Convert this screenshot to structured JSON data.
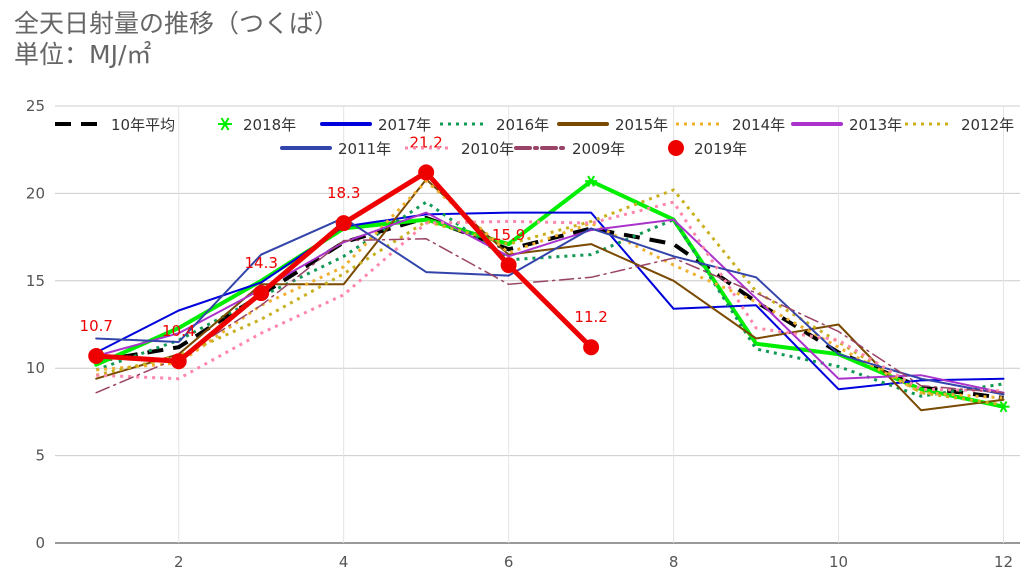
{
  "chart_data": {
    "type": "line",
    "title": "全天日射量の推移（つくば）",
    "subtitle": "単位：MJ/㎡",
    "x": [
      1,
      2,
      3,
      4,
      5,
      6,
      7,
      8,
      9,
      10,
      11,
      12
    ],
    "xticks": [
      "2",
      "4",
      "6",
      "8",
      "10",
      "12"
    ],
    "ylim": [
      0,
      25
    ],
    "yticks": [
      "0",
      "5",
      "10",
      "15",
      "20",
      "25"
    ],
    "grid": true,
    "legend_position": "top",
    "series": [
      {
        "name": "10年平均",
        "color": "#000000",
        "style": "dash",
        "values": [
          10.4,
          11.2,
          14.2,
          17.2,
          18.6,
          16.8,
          18.0,
          17.1,
          13.8,
          10.9,
          8.9,
          8.3
        ]
      },
      {
        "name": "2018年",
        "color": "#00ee00",
        "style": "solid-star",
        "values": [
          10.2,
          12.3,
          15.0,
          18.0,
          18.5,
          17.1,
          20.7,
          18.5,
          11.4,
          10.8,
          8.8,
          7.8
        ]
      },
      {
        "name": "2017年",
        "color": "#0000dd",
        "style": "solid",
        "values": [
          10.9,
          13.3,
          14.9,
          18.1,
          18.8,
          18.9,
          18.9,
          13.4,
          13.6,
          8.8,
          9.3,
          9.4
        ]
      },
      {
        "name": "2016年",
        "color": "#119955",
        "style": "dot",
        "values": [
          9.9,
          11.6,
          14.1,
          16.4,
          19.5,
          16.2,
          16.5,
          18.5,
          11.1,
          10.1,
          8.4,
          9.1
        ]
      },
      {
        "name": "2015年",
        "color": "#7a4a00",
        "style": "solid",
        "values": [
          9.4,
          10.8,
          14.8,
          14.8,
          20.8,
          16.5,
          17.1,
          15.0,
          11.7,
          12.5,
          7.6,
          8.2
        ]
      },
      {
        "name": "2014年",
        "color": "#f0b030",
        "style": "dot",
        "values": [
          9.9,
          10.3,
          13.6,
          15.8,
          20.7,
          16.6,
          18.3,
          15.9,
          13.8,
          11.2,
          8.6,
          8.3
        ]
      },
      {
        "name": "2013年",
        "color": "#aa33cc",
        "style": "solid",
        "values": [
          10.7,
          12.0,
          14.5,
          17.2,
          18.9,
          16.4,
          17.9,
          18.5,
          14.0,
          9.4,
          9.6,
          8.6
        ]
      },
      {
        "name": "2012年",
        "color": "#c8b020",
        "style": "dot",
        "values": [
          9.6,
          10.7,
          12.8,
          15.4,
          18.4,
          17.1,
          18.4,
          20.2,
          14.4,
          11.5,
          8.6,
          7.9
        ]
      },
      {
        "name": "2011年",
        "color": "#3344aa",
        "style": "solid",
        "values": [
          11.7,
          11.5,
          16.5,
          18.6,
          15.5,
          15.3,
          18.0,
          16.4,
          15.2,
          10.8,
          9.4,
          8.5
        ]
      },
      {
        "name": "2010年",
        "color": "#ff88aa",
        "style": "dot",
        "values": [
          9.6,
          9.4,
          12.0,
          14.2,
          18.3,
          18.4,
          18.3,
          19.5,
          12.3,
          11.6,
          8.8,
          8.7
        ]
      },
      {
        "name": "2009年",
        "color": "#994466",
        "style": "dashdot",
        "values": [
          8.6,
          10.6,
          13.6,
          17.3,
          17.4,
          14.8,
          15.2,
          16.3,
          14.3,
          12.1,
          9.0,
          8.6
        ]
      },
      {
        "name": "2019年",
        "color": "#ee0000",
        "style": "bold-markers",
        "values": [
          10.7,
          10.4,
          14.3,
          18.3,
          21.2,
          15.9,
          11.2,
          null,
          null,
          null,
          null,
          null
        ]
      }
    ],
    "data_labels": [
      "10.7",
      "10.4",
      "14.3",
      "18.3",
      "21.2",
      "15.9",
      "11.2"
    ]
  }
}
